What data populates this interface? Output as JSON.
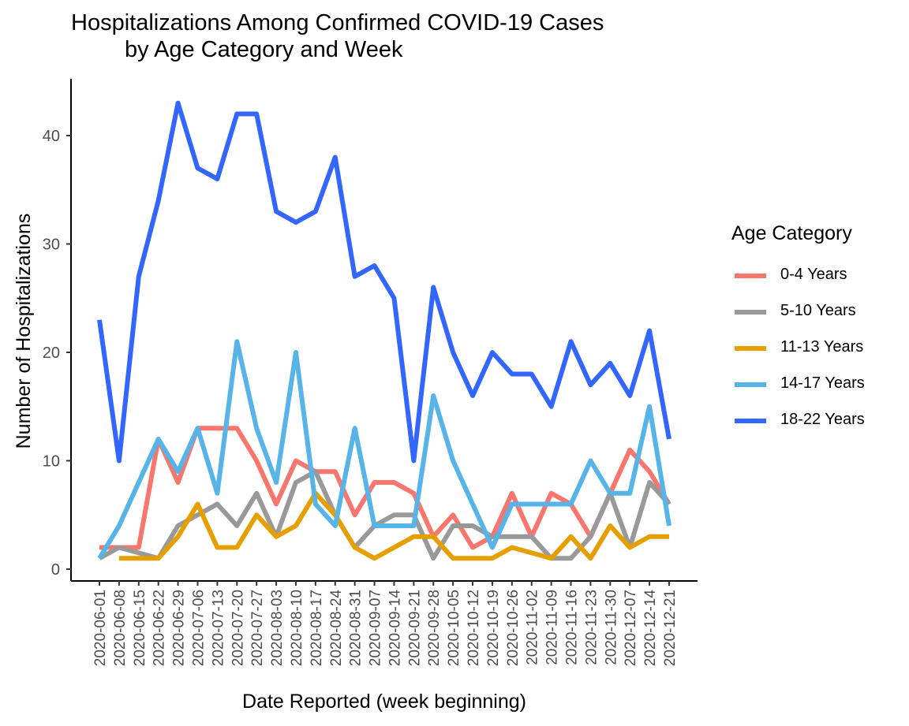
{
  "chart_data": {
    "type": "line",
    "title": "Hospitalizations Among Confirmed COVID-19 Cases",
    "subtitle": "by Age Category and Week",
    "xlabel": "Date Reported (week beginning)",
    "ylabel": "Number of Hospitalizations",
    "ylim": [
      0,
      45
    ],
    "yticks": [
      0,
      10,
      20,
      30,
      40
    ],
    "grid": false,
    "legend_title": "Age Category",
    "legend_position": "right",
    "x": [
      "2020-06-01",
      "2020-06-08",
      "2020-06-15",
      "2020-06-22",
      "2020-06-29",
      "2020-07-06",
      "2020-07-13",
      "2020-07-20",
      "2020-07-27",
      "2020-08-03",
      "2020-08-10",
      "2020-08-17",
      "2020-08-24",
      "2020-08-31",
      "2020-09-07",
      "2020-09-14",
      "2020-09-21",
      "2020-09-28",
      "2020-10-05",
      "2020-10-12",
      "2020-10-19",
      "2020-10-26",
      "2020-11-02",
      "2020-11-09",
      "2020-11-16",
      "2020-11-23",
      "2020-11-30",
      "2020-12-07",
      "2020-12-14",
      "2020-12-21"
    ],
    "series": [
      {
        "name": "0-4 Years",
        "color": "#F8766D",
        "values": [
          2,
          2,
          2,
          12,
          8,
          13,
          13,
          13,
          10,
          6,
          10,
          9,
          9,
          5,
          8,
          8,
          7,
          3,
          5,
          2,
          3,
          7,
          3,
          7,
          6,
          3,
          7,
          11,
          9,
          6
        ]
      },
      {
        "name": "5-10 Years",
        "color": "#999999",
        "values": [
          1,
          2,
          1.5,
          1,
          4,
          5,
          6,
          4,
          7,
          3,
          8,
          9,
          5,
          2,
          4,
          5,
          5,
          1,
          4,
          4,
          3,
          3,
          3,
          1,
          1,
          3,
          7,
          2,
          8,
          6
        ]
      },
      {
        "name": "11-13 Years",
        "color": "#E69F00",
        "values": [
          null,
          1,
          1,
          1,
          3,
          6,
          2,
          2,
          5,
          3,
          4,
          7,
          5,
          2,
          1,
          2,
          3,
          3,
          1,
          1,
          1,
          2,
          1.5,
          1,
          3,
          1,
          4,
          2,
          3,
          3
        ]
      },
      {
        "name": "14-17 Years",
        "color": "#56B4E9",
        "values": [
          1,
          4,
          8,
          12,
          9,
          13,
          7,
          21,
          13,
          8,
          20,
          6,
          4,
          13,
          4,
          4,
          4,
          16,
          10,
          6,
          2,
          6,
          6,
          6,
          6,
          10,
          7,
          7,
          15,
          4
        ]
      },
      {
        "name": "18-22 Years",
        "color": "#3366FF",
        "values": [
          23,
          10,
          27,
          34,
          43,
          37,
          36,
          42,
          42,
          33,
          32,
          33,
          38,
          27,
          28,
          25,
          10,
          26,
          20,
          16,
          20,
          18,
          18,
          15,
          21,
          17,
          19,
          16,
          22,
          12
        ]
      }
    ]
  }
}
